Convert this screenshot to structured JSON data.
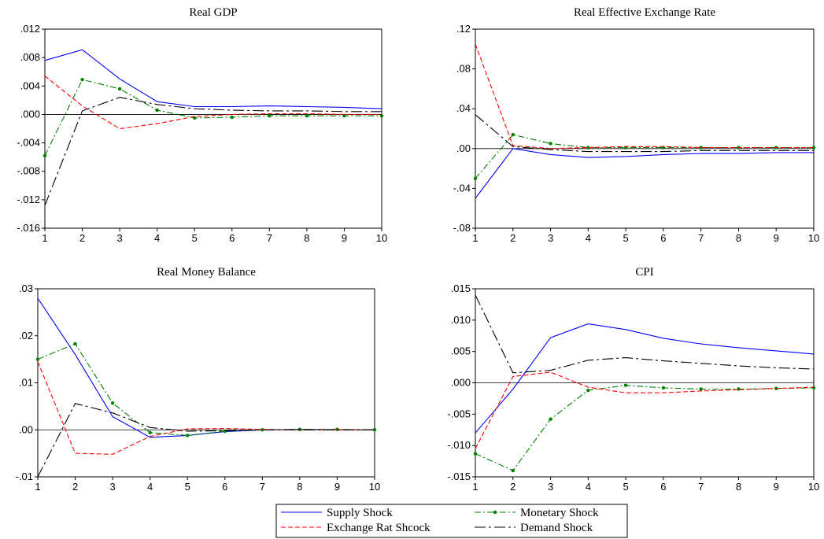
{
  "chart_data": [
    {
      "type": "line",
      "title": "Real GDP",
      "x": [
        1,
        2,
        3,
        4,
        5,
        6,
        7,
        8,
        9,
        10
      ],
      "x_tick_labels": [
        "1",
        "2",
        "3",
        "4",
        "5",
        "6",
        "7",
        "8",
        "9",
        "10"
      ],
      "ylim": [
        -0.016,
        0.012
      ],
      "y_ticks": [
        0.012,
        0.008,
        0.004,
        0.0,
        -0.004,
        -0.008,
        -0.012,
        -0.016
      ],
      "y_tick_labels": [
        ".012",
        ".008",
        ".004",
        ".000",
        "-.004",
        "-.008",
        "-.012",
        "-.016"
      ],
      "series": [
        {
          "name": "Supply Shock",
          "values": [
            0.0076,
            0.0091,
            0.005,
            0.0018,
            0.0011,
            0.0011,
            0.0012,
            0.0011,
            0.001,
            0.0008
          ]
        },
        {
          "name": "Monetary Shock",
          "values": [
            -0.0058,
            0.0049,
            0.0036,
            0.0006,
            -0.0005,
            -0.0004,
            -0.0002,
            -0.0002,
            -0.0002,
            -0.0002
          ]
        },
        {
          "name": "Exchange Rat Shcock",
          "values": [
            0.0054,
            0.0012,
            -0.002,
            -0.0013,
            -0.0003,
            0.0,
            0.0001,
            0.0001,
            0.0,
            0.0
          ]
        },
        {
          "name": "Demand Shock",
          "values": [
            -0.0128,
            0.0005,
            0.0024,
            0.0014,
            0.0008,
            0.0006,
            0.0005,
            0.0005,
            0.0004,
            0.0004
          ]
        }
      ]
    },
    {
      "type": "line",
      "title": "Real Effective Exchange Rate",
      "x": [
        1,
        2,
        3,
        4,
        5,
        6,
        7,
        8,
        9,
        10
      ],
      "x_tick_labels": [
        "1",
        "2",
        "3",
        "4",
        "5",
        "6",
        "7",
        "8",
        "9",
        "10"
      ],
      "ylim": [
        -0.08,
        0.12
      ],
      "y_ticks": [
        0.12,
        0.08,
        0.04,
        0.0,
        -0.04,
        -0.08
      ],
      "y_tick_labels": [
        ".12",
        ".08",
        ".04",
        ".00",
        "-.04",
        "-.08"
      ],
      "series": [
        {
          "name": "Supply Shock",
          "values": [
            -0.05,
            0.0,
            -0.006,
            -0.009,
            -0.008,
            -0.006,
            -0.005,
            -0.005,
            -0.004,
            -0.004
          ]
        },
        {
          "name": "Monetary Shock",
          "values": [
            -0.03,
            0.014,
            0.005,
            0.001,
            0.001,
            0.001,
            0.001,
            0.001,
            0.001,
            0.001
          ]
        },
        {
          "name": "Exchange Rat Shcock",
          "values": [
            0.105,
            0.003,
            0.0,
            0.001,
            0.002,
            0.002,
            0.001,
            0.001,
            0.001,
            0.001
          ]
        },
        {
          "name": "Demand Shock",
          "values": [
            0.034,
            0.002,
            -0.001,
            -0.003,
            -0.003,
            -0.003,
            -0.002,
            -0.002,
            -0.002,
            -0.002
          ]
        }
      ]
    },
    {
      "type": "line",
      "title": "Real Money Balance",
      "x": [
        1,
        2,
        3,
        4,
        5,
        6,
        7,
        8,
        9,
        10
      ],
      "x_tick_labels": [
        "1",
        "2",
        "3",
        "4",
        "5",
        "6",
        "7",
        "8",
        "9",
        "10"
      ],
      "ylim": [
        -0.01,
        0.03
      ],
      "y_ticks": [
        0.03,
        0.02,
        0.01,
        0.0,
        -0.01
      ],
      "y_tick_labels": [
        ".03",
        ".02",
        ".01",
        ".00",
        "-.01"
      ],
      "series": [
        {
          "name": "Supply Shock",
          "values": [
            0.028,
            0.016,
            0.0028,
            -0.0016,
            -0.0012,
            -0.0004,
            0.0,
            0.0001,
            0.0,
            0.0
          ]
        },
        {
          "name": "Monetary Shock",
          "values": [
            0.015,
            0.0183,
            0.0057,
            -0.0006,
            -0.0012,
            -0.0003,
            0.0,
            0.0001,
            0.0001,
            0.0
          ]
        },
        {
          "name": "Exchange Rat Shcock",
          "values": [
            0.0145,
            -0.005,
            -0.0052,
            -0.0014,
            0.0002,
            0.0003,
            0.0001,
            0.0,
            0.0,
            0.0
          ]
        },
        {
          "name": "Demand Shock",
          "values": [
            -0.01,
            0.0056,
            0.0036,
            0.0005,
            -0.0003,
            -0.0002,
            0.0,
            0.0,
            0.0,
            0.0
          ]
        }
      ]
    },
    {
      "type": "line",
      "title": "CPI",
      "x": [
        1,
        2,
        3,
        4,
        5,
        6,
        7,
        8,
        9,
        10
      ],
      "x_tick_labels": [
        "1",
        "2",
        "3",
        "4",
        "5",
        "6",
        "7",
        "8",
        "9",
        "10"
      ],
      "ylim": [
        -0.015,
        0.015
      ],
      "y_ticks": [
        0.015,
        0.01,
        0.005,
        0.0,
        -0.005,
        -0.01,
        -0.015
      ],
      "y_tick_labels": [
        ".015",
        ".010",
        ".005",
        ".000",
        "-.005",
        "-.010",
        "-.015"
      ],
      "series": [
        {
          "name": "Supply Shock",
          "values": [
            -0.008,
            -0.001,
            0.0072,
            0.0094,
            0.0085,
            0.0071,
            0.0062,
            0.0056,
            0.0051,
            0.0046
          ]
        },
        {
          "name": "Monetary Shock",
          "values": [
            -0.0113,
            -0.014,
            -0.0058,
            -0.0012,
            -0.0004,
            -0.0008,
            -0.001,
            -0.001,
            -0.0009,
            -0.0008
          ]
        },
        {
          "name": "Exchange Rat Shcock",
          "values": [
            -0.0105,
            0.001,
            0.0017,
            -0.0007,
            -0.0016,
            -0.0016,
            -0.0013,
            -0.0011,
            -0.0009,
            -0.0007
          ]
        },
        {
          "name": "Demand Shock",
          "values": [
            0.014,
            0.0016,
            0.002,
            0.0036,
            0.004,
            0.0035,
            0.0031,
            0.0027,
            0.0024,
            0.0022
          ]
        }
      ]
    }
  ],
  "series_styles": {
    "Supply Shock": {
      "color": "#0000ff",
      "dash": "solid",
      "marker": false
    },
    "Monetary Shock": {
      "color": "#008000",
      "dash": "dashdot",
      "marker": true
    },
    "Exchange Rat Shcock": {
      "color": "#ff0000",
      "dash": "dashed",
      "marker": false
    },
    "Demand Shock": {
      "color": "#000000",
      "dash": "longdashdot",
      "marker": false
    }
  },
  "legend": {
    "entries": [
      "Supply Shock",
      "Monetary Shock",
      "Exchange Rat Shcock",
      "Demand Shock"
    ],
    "placement": "bottom-center"
  }
}
